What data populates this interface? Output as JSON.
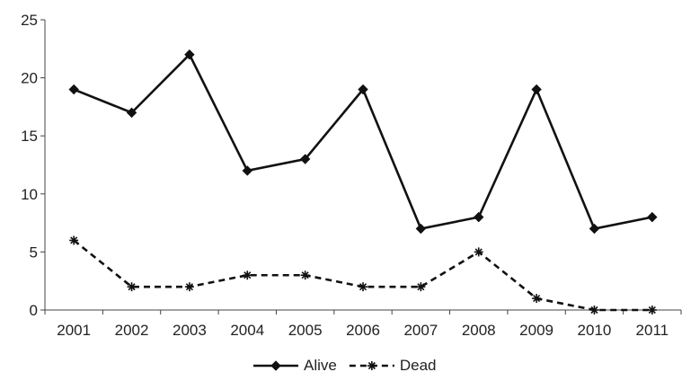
{
  "chart_data": {
    "type": "line",
    "title": "",
    "xlabel": "",
    "ylabel": "",
    "ylim": [
      0,
      25
    ],
    "yticks": [
      0,
      5,
      10,
      15,
      20,
      25
    ],
    "categories": [
      "2001",
      "2002",
      "2003",
      "2004",
      "2005",
      "2006",
      "2007",
      "2008",
      "2009",
      "2010",
      "2011"
    ],
    "grid": false,
    "legend_position": "bottom",
    "series": [
      {
        "name": "Alive",
        "values": [
          19,
          17,
          22,
          12,
          13,
          19,
          7,
          8,
          19,
          7,
          8
        ],
        "line_style": "solid",
        "marker": "diamond",
        "color": "#111111"
      },
      {
        "name": "Dead",
        "values": [
          6,
          2,
          2,
          3,
          3,
          2,
          2,
          5,
          1,
          0,
          0
        ],
        "line_style": "dashed",
        "marker": "asterisk",
        "color": "#111111"
      }
    ]
  }
}
